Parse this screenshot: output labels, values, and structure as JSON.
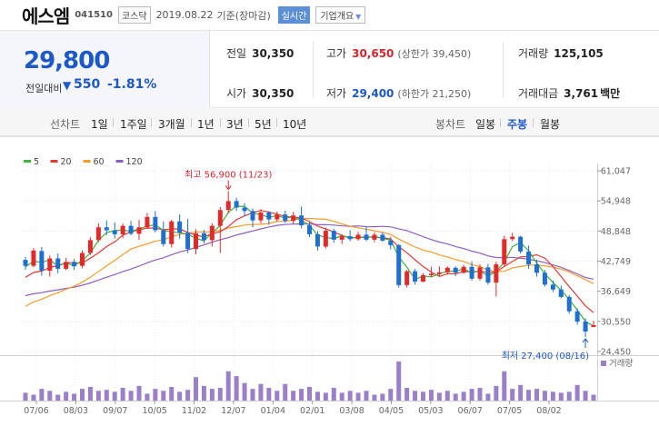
{
  "header": {
    "name": "에스엠",
    "code": "041510",
    "market": "코스닥",
    "date": "2019.08.22",
    "basis": "기준(장마감)",
    "realtime_label": "실시간",
    "company_label": "기업개요"
  },
  "quote": {
    "price": "29,800",
    "change_label": "전일대비",
    "change_value": "550",
    "change_pct": "-1.81%",
    "prev_close_label": "전일",
    "prev_close": "30,350",
    "high_label": "고가",
    "high": "30,650",
    "upper_limit": "(상한가 39,450)",
    "volume_label": "거래량",
    "volume": "125,105",
    "open_label": "시가",
    "open": "30,350",
    "low_label": "저가",
    "low": "29,400",
    "lower_limit": "(하한가 21,250)",
    "amount_label": "거래대금",
    "amount": "3,761",
    "amount_unit": "백만"
  },
  "periods": {
    "label": "선차트",
    "items": [
      "1일",
      "1주일",
      "3개월",
      "1년",
      "3년",
      "5년",
      "10년"
    ],
    "candle_label": "봉차트",
    "candle_items": [
      "일봉",
      "주봉",
      "월봉"
    ],
    "active": "주봉"
  },
  "colors": {
    "up": "#e32a2a",
    "down": "#1f6fd1",
    "ma5": "#3fb33a",
    "ma20": "#e53935",
    "ma60": "#f39c2b",
    "ma120": "#8e5fc2",
    "volume": "#9a7fc9"
  },
  "chart_data": {
    "type": "candlestick",
    "legend": [
      {
        "name": "5",
        "color": "#3fb33a"
      },
      {
        "name": "20",
        "color": "#e53935"
      },
      {
        "name": "60",
        "color": "#f39c2b"
      },
      {
        "name": "120",
        "color": "#8e5fc2"
      }
    ],
    "y_ticks": [
      "61,047",
      "54,948",
      "48,848",
      "42,749",
      "36,649",
      "30,550",
      "24,450"
    ],
    "y_range": [
      24450,
      61047
    ],
    "x_ticks": [
      "07/06",
      "08/03",
      "09/07",
      "10/05",
      "11/02",
      "12/07",
      "01/04",
      "02/01",
      "03/08",
      "04/05",
      "05/03",
      "06/07",
      "07/05",
      "08/02"
    ],
    "high_annotation": "최고 56,900 (11/23)",
    "low_annotation": "최저 27,400 (08/16)",
    "volume_label": "거래량",
    "candles": [
      [
        43000,
        43600,
        41000,
        41800
      ],
      [
        41800,
        45400,
        41500,
        44900
      ],
      [
        44800,
        45600,
        39800,
        40800
      ],
      [
        40800,
        43900,
        39600,
        43300
      ],
      [
        43300,
        44300,
        40300,
        41200
      ],
      [
        41200,
        43400,
        40900,
        42600
      ],
      [
        42600,
        43200,
        41000,
        41700
      ],
      [
        41800,
        44900,
        41300,
        44400
      ],
      [
        44400,
        47600,
        44000,
        47000
      ],
      [
        47000,
        50400,
        46600,
        49600
      ],
      [
        49600,
        51000,
        48000,
        49000
      ],
      [
        49000,
        50600,
        47300,
        48200
      ],
      [
        48200,
        50400,
        47400,
        49900
      ],
      [
        49900,
        50900,
        48000,
        48300
      ],
      [
        48300,
        51100,
        47100,
        49600
      ],
      [
        49600,
        52500,
        49300,
        51700
      ],
      [
        51700,
        52900,
        48600,
        49000
      ],
      [
        49000,
        50800,
        45700,
        46200
      ],
      [
        46200,
        51100,
        45500,
        50800
      ],
      [
        50800,
        52200,
        47300,
        48500
      ],
      [
        48500,
        51300,
        44400,
        45200
      ],
      [
        45200,
        49200,
        44100,
        48400
      ],
      [
        48400,
        49100,
        46300,
        47000
      ],
      [
        47000,
        50400,
        45700,
        49900
      ],
      [
        49900,
        53700,
        44400,
        53100
      ],
      [
        53100,
        56900,
        52400,
        54900
      ],
      [
        54900,
        55600,
        52900,
        53600
      ],
      [
        53600,
        54500,
        51800,
        52900
      ],
      [
        52900,
        53400,
        49600,
        51000
      ],
      [
        51000,
        53300,
        50400,
        52600
      ],
      [
        52600,
        52900,
        50100,
        51200
      ],
      [
        51200,
        52800,
        50700,
        52200
      ],
      [
        52200,
        53000,
        50500,
        50900
      ],
      [
        50900,
        52700,
        50200,
        52000
      ],
      [
        52000,
        53800,
        49400,
        50000
      ],
      [
        50000,
        50700,
        47600,
        48200
      ],
      [
        48200,
        48800,
        44900,
        45700
      ],
      [
        45700,
        49500,
        45300,
        48900
      ],
      [
        48900,
        49300,
        46500,
        47100
      ],
      [
        47100,
        48200,
        46200,
        47800
      ],
      [
        47800,
        49000,
        46800,
        47200
      ],
      [
        47200,
        48700,
        46900,
        48100
      ],
      [
        48100,
        49700,
        46800,
        47100
      ],
      [
        47100,
        48600,
        46600,
        48100
      ],
      [
        48100,
        48600,
        46700,
        46900
      ],
      [
        46900,
        47700,
        45100,
        46000
      ],
      [
        46000,
        46200,
        37400,
        37900
      ],
      [
        37900,
        41000,
        37400,
        40700
      ],
      [
        40700,
        41200,
        38000,
        38600
      ],
      [
        38600,
        40300,
        38500,
        39900
      ],
      [
        39900,
        41600,
        39500,
        40200
      ],
      [
        40200,
        41700,
        39700,
        40500
      ],
      [
        40500,
        41700,
        40000,
        41400
      ],
      [
        41400,
        41700,
        39700,
        40400
      ],
      [
        40400,
        42000,
        40200,
        41600
      ],
      [
        41600,
        42700,
        38800,
        39200
      ],
      [
        39200,
        42100,
        38800,
        41500
      ],
      [
        41500,
        42200,
        38000,
        38400
      ],
      [
        38400,
        42600,
        35600,
        42100
      ],
      [
        42100,
        47900,
        41800,
        47200
      ],
      [
        47200,
        48500,
        46800,
        47700
      ],
      [
        47700,
        47900,
        44300,
        44700
      ],
      [
        44700,
        45900,
        41200,
        42100
      ],
      [
        42100,
        43000,
        39600,
        40400
      ],
      [
        40400,
        41000,
        37600,
        38000
      ],
      [
        38000,
        38800,
        36500,
        37000
      ],
      [
        37000,
        37800,
        35200,
        35500
      ],
      [
        35500,
        35900,
        32100,
        32600
      ],
      [
        32600,
        33200,
        29900,
        30500
      ],
      [
        30500,
        31200,
        27400,
        28500
      ],
      [
        29400,
        30650,
        29400,
        29800
      ]
    ],
    "volumes": [
      8,
      6,
      12,
      10,
      6,
      9,
      7,
      12,
      14,
      10,
      11,
      9,
      13,
      10,
      15,
      7,
      12,
      10,
      14,
      9,
      11,
      24,
      15,
      12,
      13,
      30,
      25,
      18,
      12,
      17,
      13,
      10,
      17,
      10,
      12,
      14,
      9,
      8,
      13,
      8,
      10,
      8,
      10,
      6,
      7,
      12,
      40,
      13,
      10,
      9,
      11,
      8,
      10,
      7,
      9,
      12,
      13,
      7,
      15,
      30,
      12,
      16,
      11,
      12,
      10,
      9,
      8,
      9,
      16,
      10,
      6
    ]
  }
}
